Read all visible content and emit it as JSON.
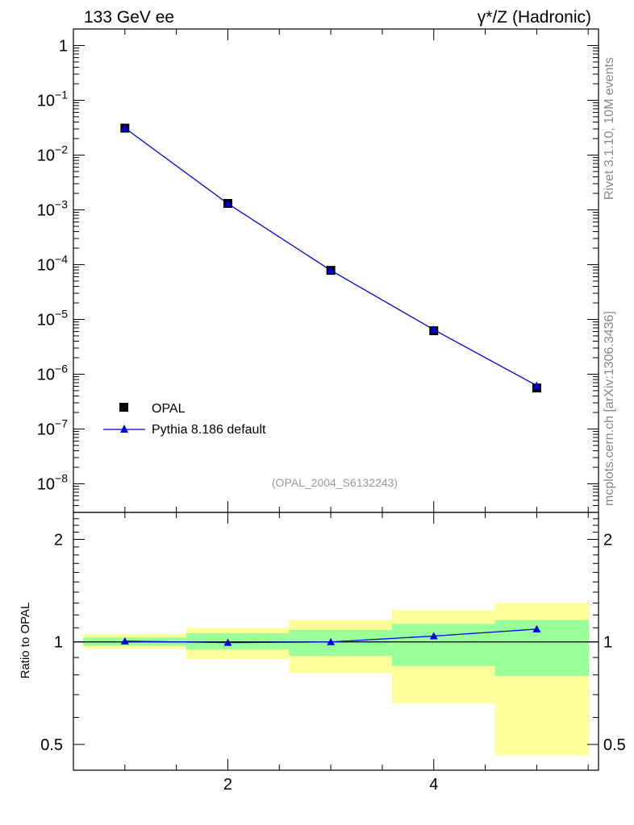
{
  "header": {
    "left_title": "133 GeV ee",
    "right_title": "γ*/Z (Hadronic)"
  },
  "side_labels": {
    "rivet": "Rivet 3.1.10,  10M events",
    "mcplots": "mcplots.cern.ch [arXiv:1306.3436]"
  },
  "analysis_tag": "(OPAL_2004_S6132243)",
  "legend": {
    "data_label": "OPAL",
    "mc_label": "Pythia 8.186 default"
  },
  "ratio_ylabel": "Ratio to OPAL",
  "colors": {
    "mc_line": "#0000dd",
    "band_inner": "#99ff99",
    "band_outer": "#ffff99",
    "data_marker": "#000000"
  },
  "chart_data": [
    {
      "type": "scatter",
      "panel": "main",
      "yscale": "log",
      "xlim": [
        0.5,
        5.6
      ],
      "ylim": [
        3e-09,
        2
      ],
      "ytick_labels": [
        {
          "value": 1,
          "label": "1"
        },
        {
          "value": 0.1,
          "label": "10",
          "exp": "−1"
        },
        {
          "value": 0.01,
          "label": "10",
          "exp": "−2"
        },
        {
          "value": 0.001,
          "label": "10",
          "exp": "−3"
        },
        {
          "value": 0.0001,
          "label": "10",
          "exp": "−4"
        },
        {
          "value": 1e-05,
          "label": "10",
          "exp": "−5"
        },
        {
          "value": 1e-06,
          "label": "10",
          "exp": "−6"
        },
        {
          "value": 1e-07,
          "label": "10",
          "exp": "−7"
        },
        {
          "value": 1e-08,
          "label": "10",
          "exp": "−8"
        }
      ],
      "series": [
        {
          "name": "OPAL",
          "marker": "square",
          "x": [
            1,
            2,
            3,
            4,
            5
          ],
          "y": [
            0.031,
            0.00131,
            7.85e-05,
            6.2e-06,
            5.6e-07
          ]
        },
        {
          "name": "Pythia 8.186 default",
          "marker": "triangle",
          "x": [
            1,
            2,
            3,
            4,
            5
          ],
          "y": [
            0.0312,
            0.0013,
            7.85e-05,
            6.5e-06,
            6.2e-07
          ]
        }
      ],
      "legend_position": "bottom-left"
    },
    {
      "type": "scatter",
      "panel": "ratio",
      "ylabel": "Ratio to OPAL",
      "yscale": "log",
      "xlim": [
        0.5,
        5.6
      ],
      "ylim": [
        0.42,
        2.4
      ],
      "ytick_labels": [
        {
          "value": 2,
          "label": "2"
        },
        {
          "value": 1,
          "label": "1"
        },
        {
          "value": 0.5,
          "label": "0.5"
        }
      ],
      "xtick_labels": [
        {
          "value": 2,
          "label": "2"
        },
        {
          "value": 4,
          "label": "4"
        }
      ],
      "bands": [
        {
          "x_lo": 0.5,
          "x_hi": 1.5,
          "inner": [
            0.975,
            1.03
          ],
          "outer": [
            0.955,
            1.055
          ]
        },
        {
          "x_lo": 1.5,
          "x_hi": 2.5,
          "inner": [
            0.95,
            1.06
          ],
          "outer": [
            0.89,
            1.1
          ]
        },
        {
          "x_lo": 2.5,
          "x_hi": 3.5,
          "inner": [
            0.91,
            1.085
          ],
          "outer": [
            0.81,
            1.16
          ]
        },
        {
          "x_lo": 3.5,
          "x_hi": 4.5,
          "inner": [
            0.85,
            1.13
          ],
          "outer": [
            0.66,
            1.24
          ]
        },
        {
          "x_lo": 4.5,
          "x_hi": 5.5,
          "inner": [
            0.795,
            1.16
          ],
          "outer": [
            0.465,
            1.3
          ]
        }
      ],
      "series": [
        {
          "name": "Pythia 8.186 default",
          "x": [
            1,
            2,
            3,
            4,
            5
          ],
          "y": [
            1.005,
            0.995,
            1.0,
            1.04,
            1.09
          ]
        }
      ]
    }
  ]
}
